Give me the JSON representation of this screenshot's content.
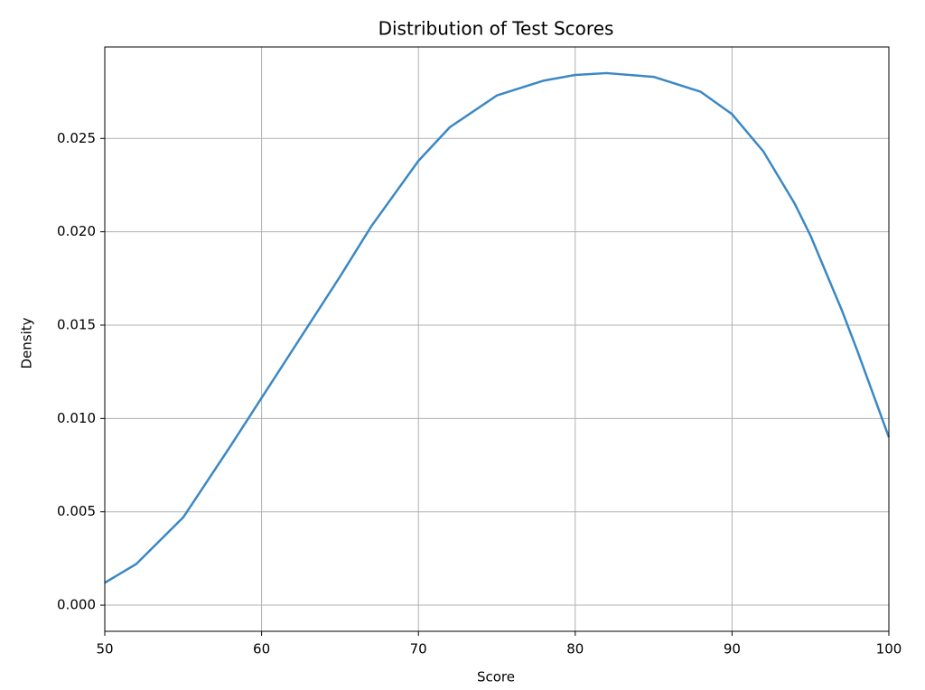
{
  "chart_data": {
    "type": "line",
    "title": "Distribution of Test Scores",
    "xlabel": "Score",
    "ylabel": "Density",
    "x": [
      50,
      52,
      55,
      58,
      60,
      62,
      65,
      67,
      70,
      72,
      75,
      78,
      80,
      82,
      85,
      88,
      90,
      92,
      94,
      95,
      97,
      98,
      100
    ],
    "values": [
      0.0012,
      0.0022,
      0.0047,
      0.0085,
      0.0111,
      0.0137,
      0.0176,
      0.0203,
      0.0238,
      0.0256,
      0.0273,
      0.0281,
      0.0284,
      0.0285,
      0.0283,
      0.0275,
      0.0263,
      0.0243,
      0.0215,
      0.0198,
      0.0158,
      0.0136,
      0.009
    ],
    "color": "#3a88c5",
    "xlim": [
      50,
      100
    ],
    "xticks": [
      50,
      60,
      70,
      80,
      90,
      100
    ],
    "ylim": [
      -0.0014,
      0.0299
    ],
    "yticks": [
      {
        "value": 0,
        "label": "0.000"
      },
      0.005,
      {
        "value": 0.01,
        "label": "0.010"
      },
      0.015,
      {
        "value": 0.02,
        "label": "0.020"
      },
      0.025
    ],
    "grid": true
  }
}
